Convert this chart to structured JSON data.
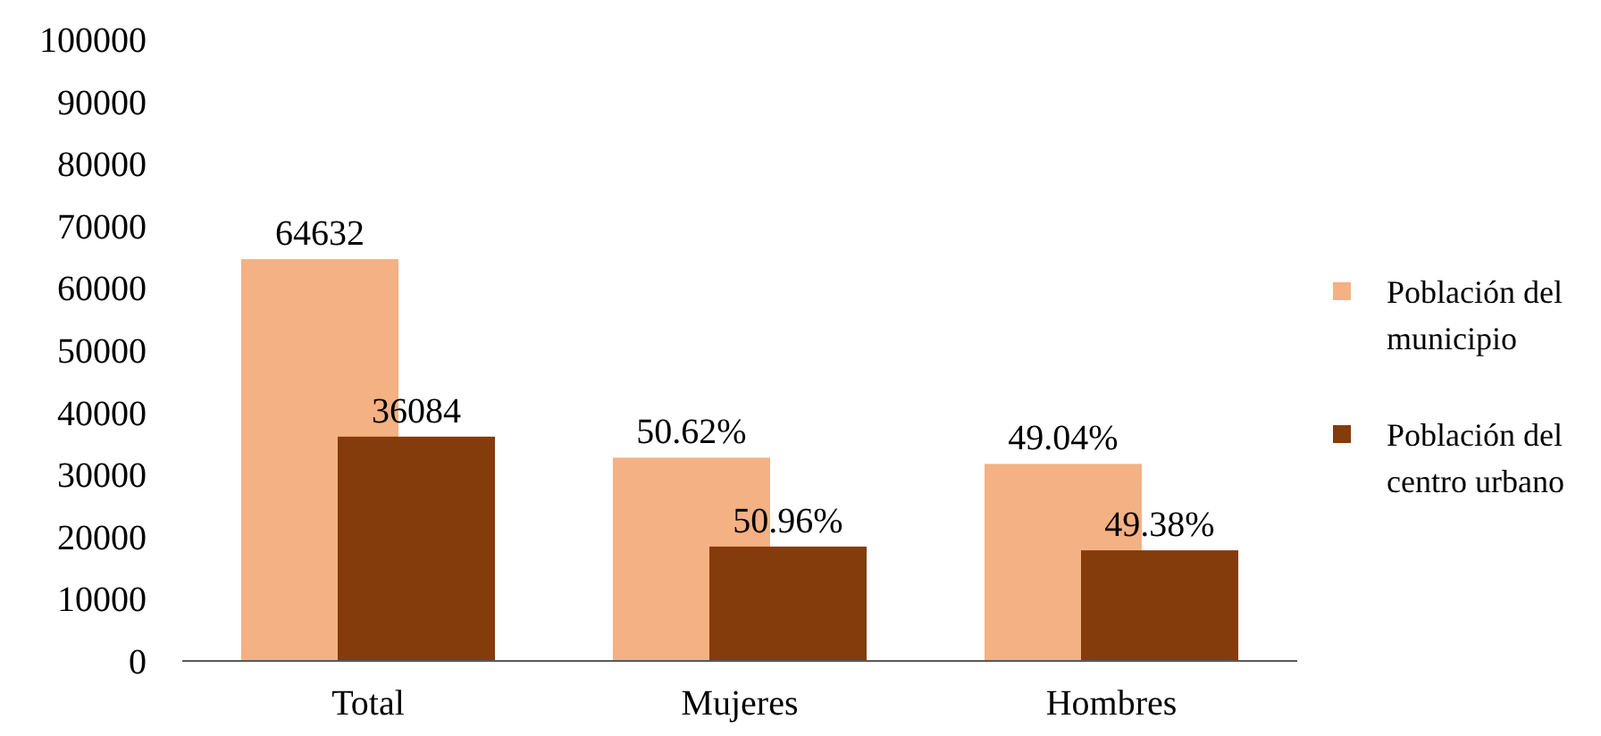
{
  "chart_data": {
    "type": "bar",
    "categories": [
      "Total",
      "Mujeres",
      "Hombres"
    ],
    "series": [
      {
        "name": "Población del municipio",
        "color": "#f4b183",
        "values": [
          64632,
          32700,
          31700
        ],
        "value_labels": [
          "64632",
          null,
          null
        ]
      },
      {
        "name": "Población del centro urbano",
        "color": "#843c0c",
        "values": [
          36084,
          18400,
          17800
        ],
        "value_labels": [
          "36084",
          null,
          null
        ]
      }
    ],
    "annotations": [
      {
        "text": "50.62%",
        "x": "Mujeres",
        "y": 32700
      },
      {
        "text": "50.96%",
        "x": "Mujeres",
        "y": 18400
      },
      {
        "text": "49.04%",
        "x": "Hombres",
        "y": 31700
      },
      {
        "text": "49.38%",
        "x": "Hombres",
        "y": 17800
      }
    ],
    "ylim": [
      0,
      100000
    ],
    "yticks": [
      0,
      10000,
      20000,
      30000,
      40000,
      50000,
      60000,
      70000,
      80000,
      90000,
      100000
    ],
    "grid": false,
    "legend": "right"
  }
}
